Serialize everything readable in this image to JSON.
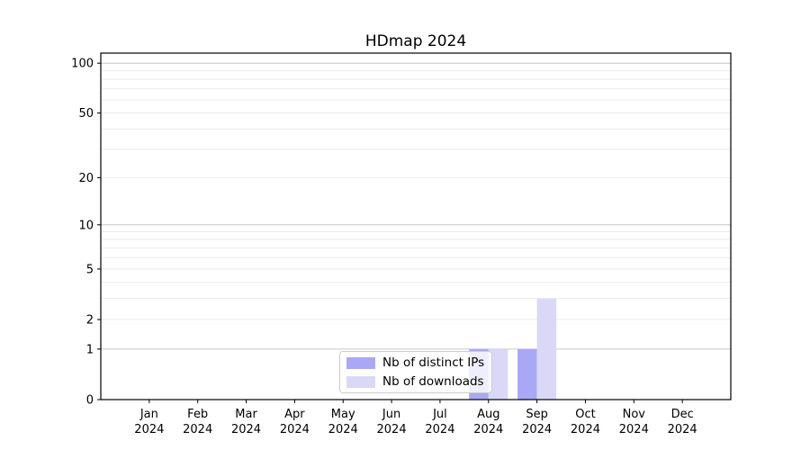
{
  "chart_data": {
    "type": "bar",
    "title": "HDmap 2024",
    "x": {
      "months": [
        "Jan",
        "Feb",
        "Mar",
        "Apr",
        "May",
        "Jun",
        "Jul",
        "Aug",
        "Sep",
        "Oct",
        "Nov",
        "Dec"
      ],
      "year": "2024"
    },
    "series": [
      {
        "name": "Nb of distinct IPs",
        "color": "#a8a8f4",
        "values": [
          0,
          0,
          0,
          0,
          0,
          0,
          0,
          1,
          1,
          0,
          0,
          0
        ]
      },
      {
        "name": "Nb of downloads",
        "color": "#d9d9f7",
        "values": [
          0,
          0,
          0,
          0,
          0,
          0,
          0,
          1,
          3,
          0,
          0,
          0
        ]
      }
    ],
    "yticks": [
      0,
      1,
      2,
      5,
      10,
      20,
      50,
      100
    ],
    "scale": "log1p",
    "ylim": [
      0,
      115
    ],
    "grid": {
      "major": [
        1,
        10,
        100
      ],
      "minor": [
        2,
        3,
        4,
        5,
        6,
        7,
        8,
        9,
        20,
        30,
        40,
        50,
        60,
        70,
        80,
        90
      ],
      "major_color": "#c6c6c6",
      "minor_color": "#ebebeb"
    },
    "axis_color": "#000000",
    "legend_position": "lower center"
  }
}
